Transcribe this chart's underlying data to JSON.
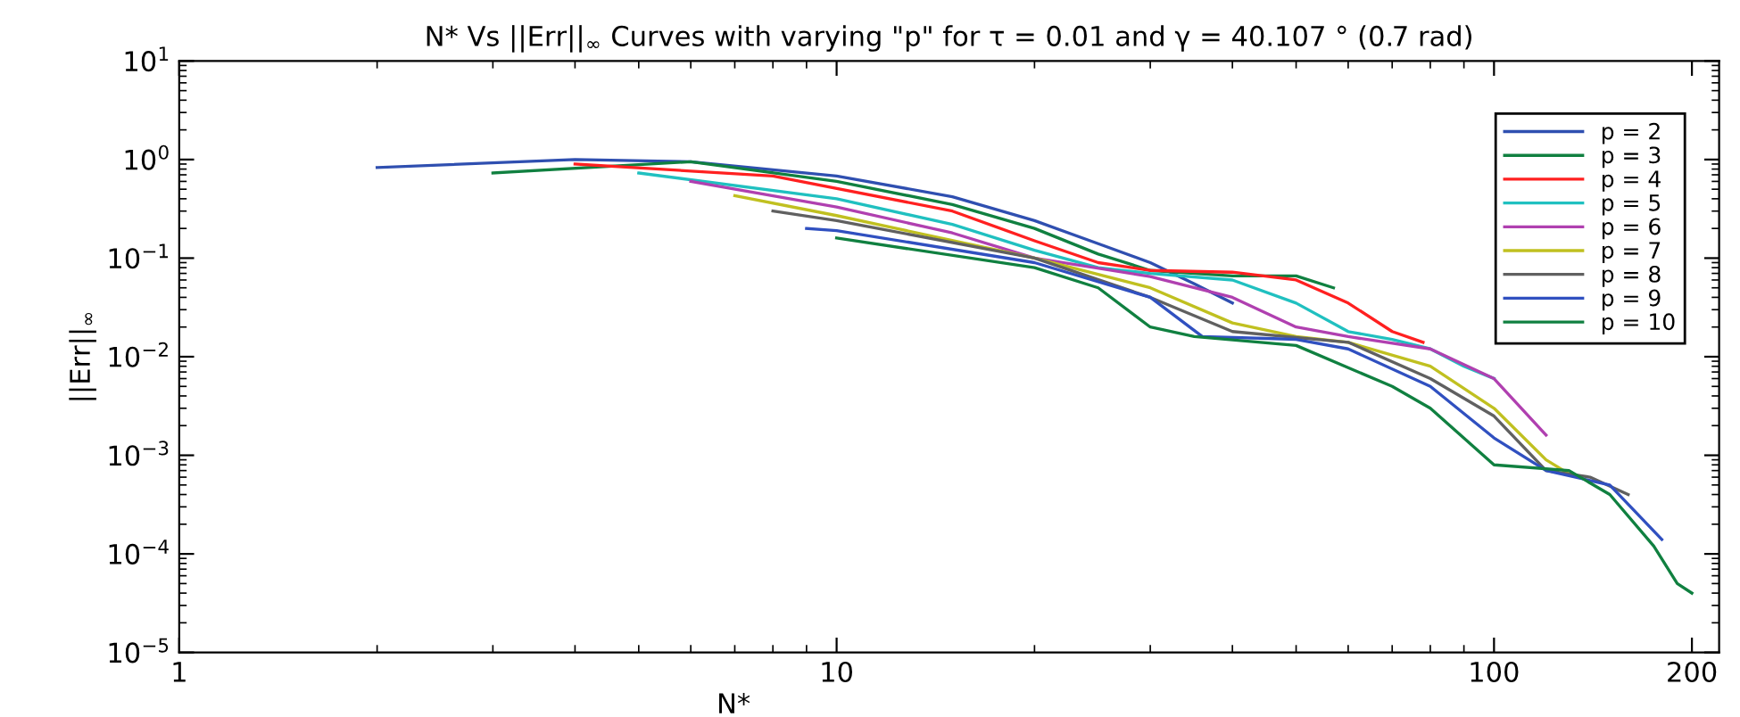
{
  "chart_data": {
    "type": "line",
    "title": "N* Vs ||Err||$_{∞}$ Curves with varying \"p\" for τ = 0.01 and γ = 40.107 ° (0.7 rad)",
    "xlabel": "N*",
    "ylabel": "||Err||$_{∞}$",
    "log": "xy",
    "grid": false,
    "legend": "top right",
    "line_style": "solid",
    "marker": "none",
    "xlim": [
      1,
      220
    ],
    "ylim": [
      1e-05,
      10
    ],
    "xticks": [
      1,
      10,
      100,
      200
    ],
    "yticks": [
      {
        "value": 1e-05,
        "label": "10$^{−5}$"
      },
      {
        "value": 0.0001,
        "label": "10$^{−4}$"
      },
      {
        "value": 0.001,
        "label": "10$^{−3}$"
      },
      {
        "value": 0.01,
        "label": "10$^{−2}$"
      },
      {
        "value": 0.1,
        "label": "10$^{−1}$"
      },
      {
        "value": 1,
        "label": "10$^{0}$"
      },
      {
        "value": 10,
        "label": "10$^{1}$"
      }
    ],
    "series": [
      {
        "name": "p = 2",
        "color": "#2f4fb0",
        "x": [
          2,
          4,
          6,
          10,
          15,
          20,
          25,
          30,
          35,
          40
        ],
        "values": [
          0.83,
          1.0,
          0.95,
          0.68,
          0.42,
          0.24,
          0.14,
          0.09,
          0.055,
          0.035
        ]
      },
      {
        "name": "p = 3",
        "color": "#108040",
        "x": [
          3,
          6,
          10,
          15,
          20,
          25,
          30,
          40,
          50,
          57
        ],
        "values": [
          0.73,
          0.95,
          0.6,
          0.35,
          0.2,
          0.11,
          0.075,
          0.066,
          0.066,
          0.05
        ]
      },
      {
        "name": "p = 4",
        "color": "#ff2020",
        "x": [
          4,
          8,
          15,
          20,
          25,
          30,
          40,
          50,
          60,
          70,
          78
        ],
        "values": [
          0.9,
          0.68,
          0.3,
          0.15,
          0.09,
          0.075,
          0.072,
          0.06,
          0.035,
          0.018,
          0.014
        ]
      },
      {
        "name": "p = 5",
        "color": "#20c0c0",
        "x": [
          5,
          10,
          15,
          20,
          25,
          30,
          40,
          50,
          60,
          70,
          80,
          90,
          100
        ],
        "values": [
          0.73,
          0.4,
          0.22,
          0.12,
          0.08,
          0.07,
          0.06,
          0.035,
          0.018,
          0.015,
          0.012,
          0.008,
          0.006
        ]
      },
      {
        "name": "p = 6",
        "color": "#b040b0",
        "x": [
          6,
          10,
          15,
          20,
          30,
          40,
          50,
          60,
          80,
          100,
          120
        ],
        "values": [
          0.6,
          0.33,
          0.18,
          0.1,
          0.065,
          0.04,
          0.02,
          0.016,
          0.012,
          0.006,
          0.0016
        ]
      },
      {
        "name": "p = 7",
        "color": "#c0c020",
        "x": [
          7,
          10,
          20,
          30,
          40,
          50,
          60,
          80,
          100,
          120,
          130
        ],
        "values": [
          0.43,
          0.27,
          0.1,
          0.05,
          0.022,
          0.016,
          0.014,
          0.008,
          0.003,
          0.0009,
          0.00065
        ]
      },
      {
        "name": "p = 8",
        "color": "#606060",
        "x": [
          8,
          10,
          20,
          30,
          40,
          60,
          80,
          100,
          120,
          140,
          160
        ],
        "values": [
          0.3,
          0.24,
          0.1,
          0.04,
          0.018,
          0.014,
          0.006,
          0.0025,
          0.0007,
          0.0006,
          0.0004
        ]
      },
      {
        "name": "p = 9",
        "color": "#3050c0",
        "x": [
          9,
          10,
          20,
          30,
          36,
          50,
          60,
          80,
          100,
          120,
          150,
          180
        ],
        "values": [
          0.2,
          0.19,
          0.09,
          0.04,
          0.016,
          0.015,
          0.012,
          0.005,
          0.0015,
          0.0007,
          0.0005,
          0.00014
        ]
      },
      {
        "name": "p = 10",
        "color": "#108040",
        "x": [
          10,
          20,
          25,
          30,
          35,
          50,
          70,
          80,
          100,
          130,
          150,
          175,
          190,
          200
        ],
        "values": [
          0.16,
          0.08,
          0.05,
          0.02,
          0.016,
          0.013,
          0.005,
          0.003,
          0.0008,
          0.0007,
          0.0004,
          0.00012,
          5e-05,
          4e-05
        ]
      }
    ]
  }
}
